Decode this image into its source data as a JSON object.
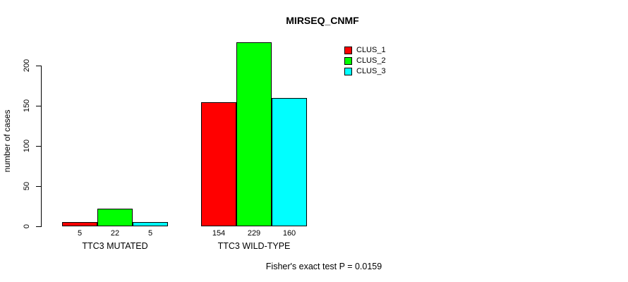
{
  "chart_data": {
    "type": "bar",
    "title": "MIRSEQ_CNMF",
    "ylabel": "number of cases",
    "xlabel": "",
    "categories": [
      "TTC3 MUTATED",
      "TTC3 WILD-TYPE"
    ],
    "series": [
      {
        "name": "CLUS_1",
        "color": "#ff0000",
        "values": [
          5,
          154
        ]
      },
      {
        "name": "CLUS_2",
        "color": "#00ff00",
        "values": [
          22,
          229
        ]
      },
      {
        "name": "CLUS_3",
        "color": "#00ffff",
        "values": [
          5,
          160
        ]
      }
    ],
    "bar_value_labels": [
      [
        "5",
        "22",
        "5"
      ],
      [
        "154",
        "229",
        "160"
      ]
    ],
    "yticks": [
      "0",
      "50",
      "100",
      "150",
      "200"
    ],
    "ytick_values": [
      0,
      50,
      100,
      150,
      200
    ],
    "ylim": [
      0,
      200
    ],
    "grid": false,
    "legend_position": "top-right",
    "legend_entries": [
      "CLUS_1",
      "CLUS_2",
      "CLUS_3"
    ],
    "annotation": "Fisher's exact test P = 0.0159",
    "axis_color": "#000000",
    "bar_border_color": "#000000",
    "background_color": "#ffffff"
  }
}
